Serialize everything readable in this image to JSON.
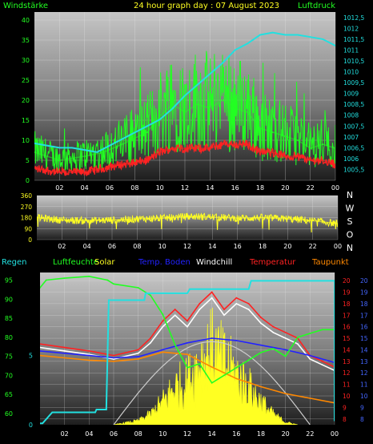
{
  "chart_data": [
    {
      "type": "line",
      "title": "24 hour graph day : 07 August 2023",
      "ylabel_left": "Windstärke",
      "ylabel_right": "Luftdruck",
      "x_ticks": [
        "02",
        "04",
        "06",
        "08",
        "10",
        "12",
        "14",
        "16",
        "18",
        "20",
        "22",
        "00"
      ],
      "ylim_left": [
        0,
        42
      ],
      "y_ticks_left": [
        "0",
        "5",
        "10",
        "15",
        "20",
        "25",
        "30",
        "35",
        "40"
      ],
      "ylim_right": [
        1005,
        1012.75
      ],
      "y_ticks_right": [
        "1005,5",
        "1006",
        "1006,5",
        "1007",
        "1007,5",
        "1008",
        "1008,5",
        "1009",
        "1009,5",
        "1010",
        "1010,5",
        "1011",
        "1011,5",
        "1012",
        "1012,5"
      ],
      "series": [
        {
          "color": "#22ff22",
          "axis": "left",
          "x": [
            0,
            2,
            4,
            5.5,
            7,
            9,
            10,
            11,
            12,
            13,
            14,
            15,
            16,
            17,
            18,
            19,
            20,
            21,
            22,
            23,
            24
          ],
          "values": [
            7,
            5,
            6,
            7,
            9,
            12,
            16,
            19,
            17,
            19,
            18,
            20,
            18,
            17,
            13,
            12,
            11,
            10,
            8,
            9,
            8
          ]
        },
        {
          "color": "#ff2222",
          "axis": "left",
          "x": [
            0,
            2,
            4,
            5.5,
            7,
            9,
            10,
            11,
            12,
            13,
            14,
            15,
            16,
            17,
            18,
            19,
            20,
            21,
            22,
            23,
            24
          ],
          "values": [
            3,
            2,
            2,
            3,
            4,
            5,
            7,
            8,
            8,
            8,
            8,
            9,
            9,
            9,
            7,
            7,
            6,
            6,
            5,
            5,
            4
          ]
        },
        {
          "color": "#22e0e0",
          "axis": "right",
          "x": [
            0,
            1,
            2,
            3,
            4,
            5,
            6,
            7,
            8,
            9,
            10,
            11,
            12,
            13,
            14,
            15,
            16,
            17,
            18,
            19,
            20,
            21,
            22,
            23,
            24
          ],
          "values": [
            1006.7,
            1006.6,
            1006.5,
            1006.5,
            1006.4,
            1006.3,
            1006.6,
            1006.9,
            1007.2,
            1007.5,
            1007.8,
            1008.3,
            1008.9,
            1009.4,
            1009.9,
            1010.4,
            1011.0,
            1011.3,
            1011.7,
            1011.8,
            1011.7,
            1011.7,
            1011.6,
            1011.5,
            1011.2
          ]
        }
      ]
    },
    {
      "type": "line",
      "x_ticks": [
        "02",
        "04",
        "06",
        "08",
        "10",
        "12",
        "14",
        "16",
        "18",
        "20",
        "22",
        "00"
      ],
      "ylim": [
        0,
        360
      ],
      "y_ticks": [
        "0",
        "90",
        "180",
        "270",
        "360"
      ],
      "right_labels": [
        "N",
        "W",
        "S",
        "O",
        "N"
      ],
      "series": [
        {
          "color": "#ffff22",
          "x": [
            0,
            2,
            4,
            6,
            8,
            10,
            12,
            14,
            16,
            18,
            20,
            22,
            24
          ],
          "values": [
            180,
            160,
            155,
            160,
            170,
            175,
            190,
            185,
            175,
            180,
            170,
            155,
            130
          ]
        }
      ]
    },
    {
      "type": "line",
      "legend": [
        {
          "label": "Regen",
          "color": "#22e0e0"
        },
        {
          "label": "Luftfeuchte",
          "color": "#22ff22"
        },
        {
          "label": "Solar",
          "color": "#ffff22"
        },
        {
          "label": "Temp. Boden",
          "color": "#2222ff"
        },
        {
          "label": "Windchill",
          "color": "#ffffff"
        },
        {
          "label": "Temperatur",
          "color": "#ff2222"
        },
        {
          "label": "Taupunkt",
          "color": "#ff8800"
        }
      ],
      "x_ticks": [
        "02",
        "04",
        "06",
        "08",
        "10",
        "12",
        "14",
        "16",
        "18",
        "20",
        "22",
        "00"
      ],
      "ylim_left": [
        57,
        97
      ],
      "y_ticks_left": [
        "60",
        "65",
        "70",
        "75",
        "80",
        "85",
        "90",
        "95"
      ],
      "ylim_rain": [
        0,
        11
      ],
      "y_ticks_rain": [
        "0",
        "5"
      ],
      "ylim_right": [
        7.5,
        20.7
      ],
      "y_ticks_right_red": [
        "8",
        "9",
        "10",
        "11",
        "12",
        "13",
        "14",
        "15",
        "16",
        "17",
        "18",
        "19",
        "20"
      ],
      "y_ticks_right_blue": [
        "8",
        "9",
        "10",
        "11",
        "12",
        "13",
        "14",
        "15",
        "16",
        "17",
        "18",
        "19",
        "20"
      ],
      "series": [
        {
          "name": "Temperatur",
          "color": "#ff2222",
          "axis": "right",
          "x": [
            0,
            2,
            4,
            6,
            8,
            9,
            10,
            11,
            12,
            13,
            14,
            15,
            16,
            17,
            18,
            19,
            20,
            21,
            22,
            23,
            24
          ],
          "values": [
            14.5,
            14.2,
            13.9,
            13.5,
            14.0,
            15.0,
            16.5,
            17.5,
            16.5,
            18.0,
            19.0,
            17.5,
            18.5,
            18.0,
            16.8,
            16.0,
            15.5,
            15.0,
            13.5,
            13.0,
            12.5
          ]
        },
        {
          "name": "Windchill",
          "color": "#ffffff",
          "axis": "right",
          "x": [
            0,
            2,
            4,
            6,
            8,
            9,
            10,
            11,
            12,
            13,
            14,
            15,
            16,
            17,
            18,
            19,
            20,
            21,
            22,
            23,
            24
          ],
          "values": [
            14.2,
            13.9,
            13.6,
            13.2,
            13.7,
            14.6,
            16.0,
            17.0,
            16.0,
            17.5,
            18.5,
            17.0,
            18.0,
            17.5,
            16.3,
            15.5,
            15.0,
            14.5,
            13.2,
            12.7,
            12.2
          ]
        },
        {
          "name": "Temp. Boden",
          "color": "#2222ff",
          "axis": "right",
          "x": [
            0,
            2,
            4,
            6,
            8,
            10,
            12,
            14,
            16,
            18,
            20,
            22,
            24
          ],
          "values": [
            13.9,
            13.7,
            13.5,
            13.3,
            13.4,
            14.0,
            14.6,
            15.0,
            14.8,
            14.4,
            14.0,
            13.5,
            12.9
          ]
        },
        {
          "name": "Taupunkt",
          "color": "#ff8800",
          "axis": "right",
          "x": [
            0,
            2,
            4,
            6,
            8,
            10,
            12,
            14,
            16,
            18,
            20,
            22,
            24
          ],
          "values": [
            13.5,
            13.3,
            13.1,
            13.0,
            13.2,
            13.8,
            13.6,
            12.5,
            11.5,
            10.8,
            10.2,
            9.8,
            9.4
          ]
        },
        {
          "name": "Luftfeuchte",
          "color": "#22ff22",
          "axis": "left",
          "x": [
            0,
            0.5,
            2,
            4,
            5.5,
            6,
            8,
            9,
            10,
            11,
            12,
            13,
            14,
            15,
            16,
            17,
            18,
            19,
            20,
            21,
            22,
            23,
            24
          ],
          "values": [
            93,
            95,
            95.5,
            96,
            95,
            94,
            93,
            91,
            86,
            78,
            72,
            73,
            68,
            70,
            72,
            74,
            76,
            77,
            75,
            80,
            81,
            82,
            82
          ]
        },
        {
          "name": "Regen",
          "color": "#22e0e0",
          "axis": "rain",
          "x": [
            0,
            0.2,
            0.6,
            1,
            4.5,
            4.6,
            5.4,
            5.6,
            8.5,
            8.6,
            12,
            12.2,
            17,
            17.2,
            24,
            24
          ],
          "values": [
            0.1,
            0.1,
            0.5,
            0.9,
            0.9,
            1.1,
            1.1,
            9.0,
            9.0,
            9.5,
            9.5,
            9.8,
            9.8,
            10.4,
            10.4,
            0.3
          ]
        },
        {
          "name": "Solar",
          "color": "#ffff22",
          "axis": "rain",
          "x": [
            6,
            8,
            9,
            10,
            11,
            12,
            13,
            14,
            15,
            16,
            17,
            18,
            19,
            20,
            21
          ],
          "values": [
            0,
            0.3,
            0.8,
            1.8,
            3.0,
            3.5,
            5.0,
            6.0,
            5.0,
            4.0,
            3.0,
            1.8,
            0.8,
            0.2,
            0
          ]
        }
      ]
    }
  ]
}
